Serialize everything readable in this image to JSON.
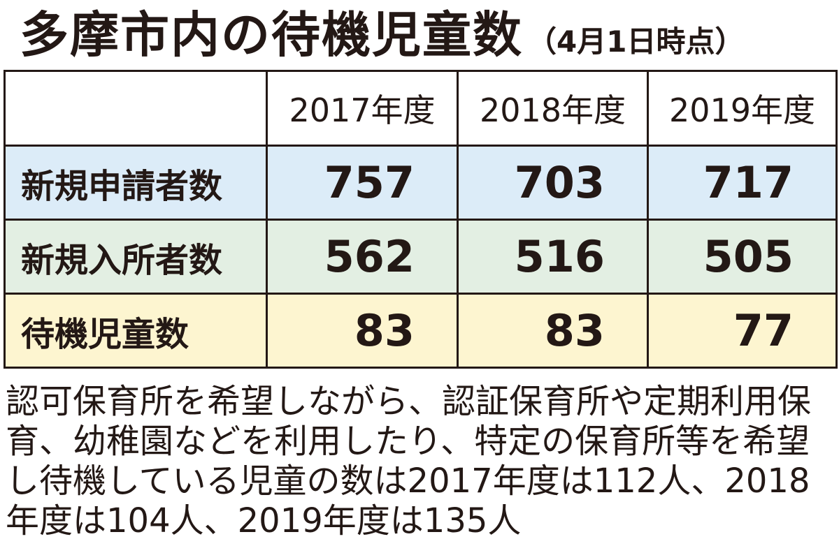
{
  "header": {
    "title": "多摩市内の待機児童数",
    "subtitle": "（4月1日時点）"
  },
  "table": {
    "columns": [
      "2017年度",
      "2018年度",
      "2019年度"
    ],
    "rows": [
      [
        "新規申請者数",
        757,
        703,
        717
      ],
      [
        "新規入所者数",
        562,
        516,
        505
      ],
      [
        "待機児童数",
        83,
        83,
        77
      ]
    ]
  },
  "note": "認可保育所を希望しながら、認証保育所や定期利用保育、幼稚園などを利用したり、特定の保育所等を希望し待機している児童の数は2017年度は112人、2018年度は104人、2019年度は135人"
}
